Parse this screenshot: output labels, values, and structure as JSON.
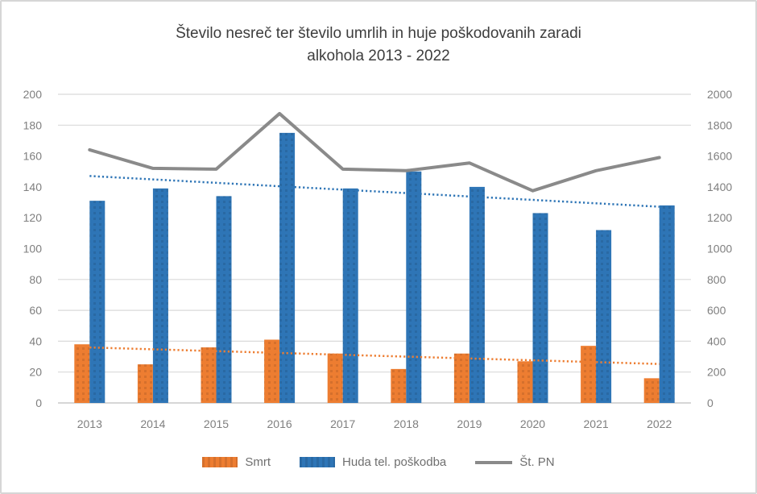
{
  "title": {
    "line1": "Število nesreč ter število umrlih in huje poškodovanih zaradi",
    "line2": "alkohola 2013 - 2022"
  },
  "colors": {
    "smrt": "#ed7d31",
    "huda": "#2e75b6",
    "pn": "#8a8a8a",
    "gridline": "#dadada",
    "zero_line": "#c9c9c9",
    "axis_text": "#7f7f7f",
    "title_text": "#3d3d3d",
    "legend_text": "#6f6f6f"
  },
  "chart_data": {
    "type": "bar",
    "subtype": "combo-bar-line",
    "title": "Število nesreč ter število umrlih in huje poškodovanih zaradi alkohola 2013 - 2022",
    "categories": [
      "2013",
      "2014",
      "2015",
      "2016",
      "2017",
      "2018",
      "2019",
      "2020",
      "2021",
      "2022"
    ],
    "series": [
      {
        "name": "Smrt",
        "type": "bar",
        "axis": "left",
        "color": "#ed7d31",
        "trendline": true,
        "values": [
          38,
          25,
          36,
          41,
          32,
          22,
          32,
          27,
          37,
          16
        ]
      },
      {
        "name": "Huda tel. poškodba",
        "type": "bar",
        "axis": "left",
        "color": "#2e75b6",
        "trendline": true,
        "values": [
          131,
          139,
          134,
          175,
          139,
          150,
          140,
          123,
          112,
          128
        ]
      },
      {
        "name": "Št. PN",
        "type": "line",
        "axis": "right",
        "color": "#8a8a8a",
        "trendline": false,
        "values": [
          1640,
          1520,
          1515,
          1875,
          1515,
          1505,
          1555,
          1375,
          1505,
          1590
        ]
      }
    ],
    "left_axis": {
      "min": 0,
      "max": 200,
      "step": 20
    },
    "right_axis": {
      "min": 0,
      "max": 2000,
      "step": 200
    },
    "gridline_values": [
      0,
      20,
      40,
      60,
      80,
      180,
      200
    ],
    "grid": "partial-horizontal",
    "legend_position": "bottom",
    "xlabel": "",
    "ylabel": "",
    "y2label": ""
  }
}
